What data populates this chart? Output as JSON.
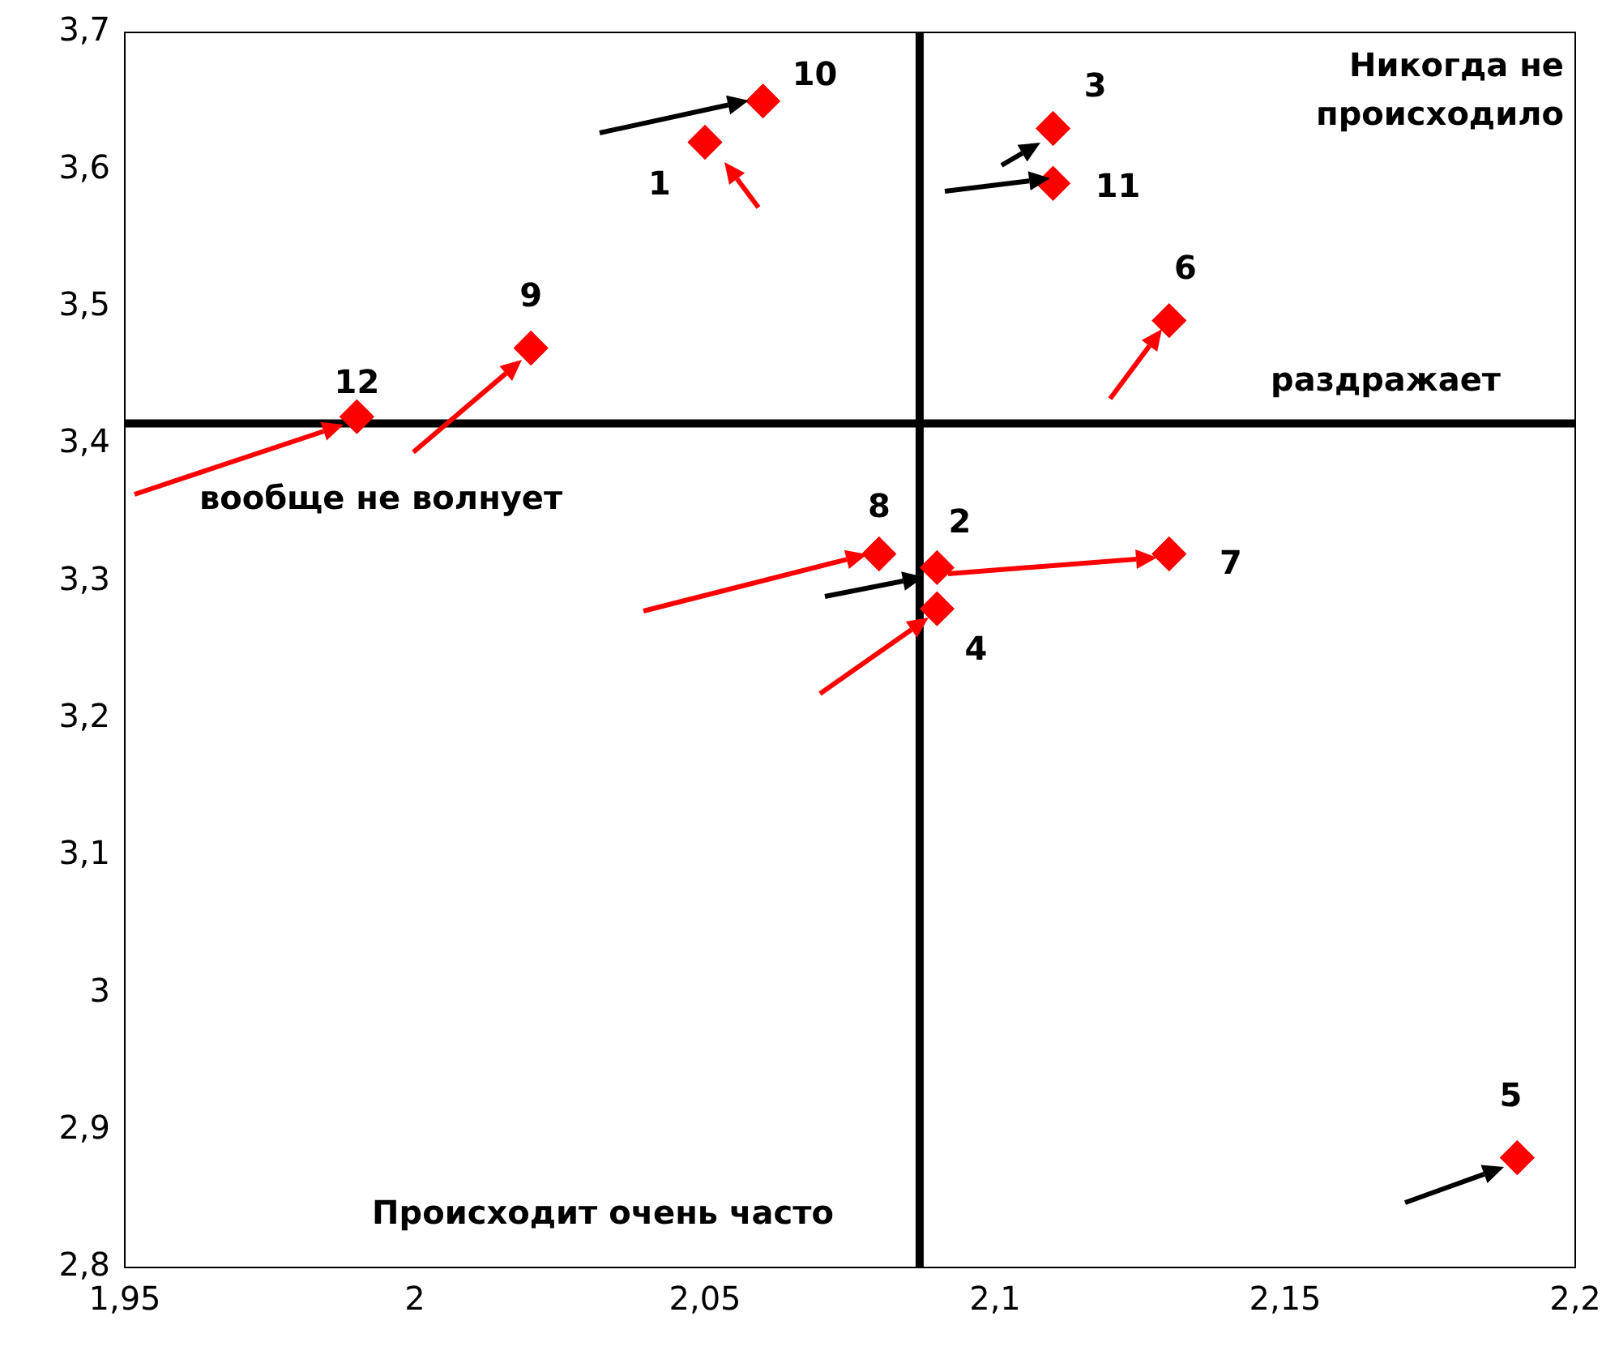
{
  "chart_data": {
    "type": "scatter",
    "marker": "diamond",
    "grid": false,
    "legend": false,
    "x": [
      2.05,
      2.09,
      2.11,
      2.09,
      2.19,
      2.13,
      2.13,
      2.08,
      2.02,
      2.06,
      2.11,
      1.99
    ],
    "values": [
      3.62,
      3.31,
      3.63,
      3.28,
      2.88,
      3.49,
      3.32,
      3.32,
      3.47,
      3.65,
      3.59,
      3.42
    ],
    "color": "#ff0000",
    "xlim": [
      1.95,
      2.2
    ],
    "xticks": [
      {
        "value": 1.95,
        "label": "1,95"
      },
      2,
      {
        "value": 2.05,
        "label": "2,05"
      },
      {
        "value": 2.1,
        "label": "2,1"
      },
      {
        "value": 2.15,
        "label": "2,15"
      },
      {
        "value": 2.2,
        "label": "2,2"
      }
    ],
    "ylim": [
      2.8,
      3.7
    ],
    "yticks": [
      {
        "value": 2.8,
        "label": "2,8"
      },
      {
        "value": 2.9,
        "label": "2,9"
      },
      3,
      {
        "value": 3.1,
        "label": "3,1"
      },
      {
        "value": 3.2,
        "label": "3,2"
      },
      {
        "value": 3.3,
        "label": "3,3"
      },
      {
        "value": 3.4,
        "label": "3,4"
      },
      {
        "value": 3.5,
        "label": "3,5"
      },
      {
        "value": 3.6,
        "label": "3,6"
      },
      {
        "value": 3.7,
        "label": "3,7"
      }
    ],
    "ref_lines": [
      {
        "axis": "x",
        "value": 2.087,
        "color": "#000000"
      },
      {
        "axis": "y",
        "value": 3.415,
        "color": "#000000"
      }
    ],
    "annotations": [
      {
        "text": "1",
        "x": 2.05,
        "y": 3.62
      },
      {
        "text": "2",
        "x": 2.09,
        "y": 3.31
      },
      {
        "text": "3",
        "x": 2.11,
        "y": 3.63
      },
      {
        "text": "4",
        "x": 2.09,
        "y": 3.28
      },
      {
        "text": "5",
        "x": 2.19,
        "y": 2.88
      },
      {
        "text": "6",
        "x": 2.13,
        "y": 3.49
      },
      {
        "text": "7",
        "x": 2.13,
        "y": 3.32
      },
      {
        "text": "8",
        "x": 2.08,
        "y": 3.32
      },
      {
        "text": "9",
        "x": 2.02,
        "y": 3.47
      },
      {
        "text": "10",
        "x": 2.06,
        "y": 3.65
      },
      {
        "text": "11",
        "x": 2.11,
        "y": 3.59
      },
      {
        "text": "12",
        "x": 1.99,
        "y": 3.42
      },
      "Никогда не происходило",
      "раздражает",
      "вообще не волнует",
      "Происходит очень часто"
    ]
  }
}
